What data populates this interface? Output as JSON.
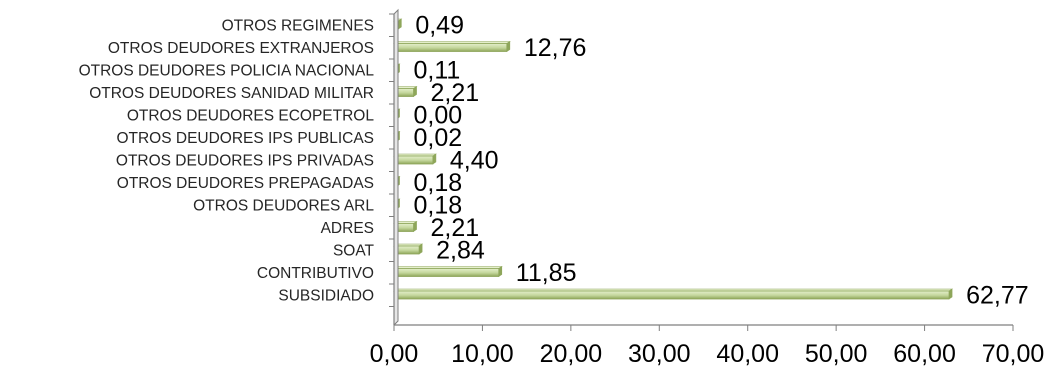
{
  "chart_data": {
    "type": "bar",
    "orientation": "horizontal",
    "categories": [
      "OTROS REGIMENES",
      "OTROS DEUDORES EXTRANJEROS",
      "OTROS DEUDORES POLICIA NACIONAL",
      "OTROS DEUDORES SANIDAD MILITAR",
      "OTROS DEUDORES ECOPETROL",
      "OTROS DEUDORES IPS PUBLICAS",
      "OTROS DEUDORES IPS PRIVADAS",
      "OTROS DEUDORES PREPAGADAS",
      "OTROS DEUDORES ARL",
      "ADRES",
      "SOAT",
      "CONTRIBUTIVO",
      "SUBSIDIADO"
    ],
    "values": [
      0.49,
      12.76,
      0.11,
      2.21,
      0.0,
      0.02,
      4.4,
      0.18,
      0.18,
      2.21,
      2.84,
      11.85,
      62.77
    ],
    "value_labels": [
      "0,49",
      "12,76",
      "0,11",
      "2,21",
      "0,00",
      "0,02",
      "4,40",
      "0,18",
      "0,18",
      "2,21",
      "2,84",
      "11,85",
      "62,77"
    ],
    "x_ticks": [
      0,
      10,
      20,
      30,
      40,
      50,
      60,
      70
    ],
    "x_tick_labels": [
      "0,00",
      "10,00",
      "20,00",
      "30,00",
      "40,00",
      "50,00",
      "60,00",
      "70,00"
    ],
    "xlim": [
      0,
      70
    ],
    "title": "",
    "xlabel": "",
    "ylabel": "",
    "grid": false,
    "legend": "none",
    "colors": {
      "bar_fill": "#c3d69b",
      "bar_highlight": "#e4efcb",
      "bar_stroke": "#8ea65a",
      "axis": "#7f7f7f"
    }
  }
}
